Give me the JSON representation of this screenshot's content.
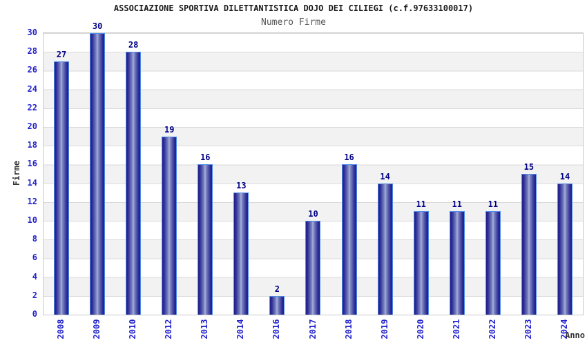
{
  "chart_data": {
    "type": "bar",
    "title": "ASSOCIAZIONE SPORTIVA DILETTANTISTICA DOJO DEI CILIEGI (c.f.97633100017)",
    "subtitle": "Numero Firme",
    "xlabel": "Anno",
    "ylabel": "Firme",
    "categories": [
      "2008",
      "2009",
      "2010",
      "2012",
      "2013",
      "2014",
      "2016",
      "2017",
      "2018",
      "2019",
      "2020",
      "2021",
      "2022",
      "2023",
      "2024"
    ],
    "values": [
      27,
      30,
      28,
      19,
      16,
      13,
      2,
      10,
      16,
      14,
      11,
      11,
      11,
      15,
      14
    ],
    "ylim": [
      0,
      30
    ],
    "ytick_step": 2,
    "yticks": [
      0,
      2,
      4,
      6,
      8,
      10,
      12,
      14,
      16,
      18,
      20,
      22,
      24,
      26,
      28,
      30
    ],
    "grid": "horizontal gridlines with alternating white/grey bands",
    "legend": "none",
    "bar_labels": "value shown above each bar"
  },
  "colors": {
    "bar_edge": "#4e8de8",
    "bar_dark": "#1f1f87",
    "bar_light_center": "#aab1dc",
    "axis_tick_text": "#2323cc",
    "bar_value_text": "#000087",
    "title_text": "#1a1a1a",
    "subtitle_text": "#555555",
    "axis_title_text": "#333333",
    "band_grey": "#f2f2f2",
    "gridline": "#d9d9d9",
    "plot_border": "#c9c9c9",
    "background": "#ffffff"
  }
}
